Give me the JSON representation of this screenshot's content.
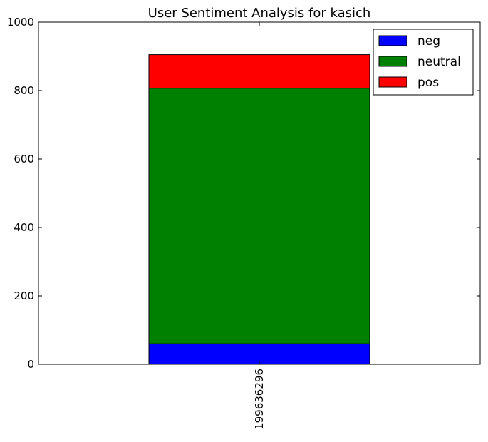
{
  "chart_data": {
    "type": "bar",
    "stacked": true,
    "title": "User Sentiment Analysis for kasich",
    "xlabel": "",
    "ylabel": "",
    "categories": [
      "199636296"
    ],
    "series": [
      {
        "name": "neg",
        "color": "#0000ff",
        "values": [
          60
        ]
      },
      {
        "name": "neutral",
        "color": "#008000",
        "values": [
          747
        ]
      },
      {
        "name": "pos",
        "color": "#ff0000",
        "values": [
          98
        ]
      }
    ],
    "ylim": [
      0,
      1000
    ],
    "yticks": [
      "0",
      "200",
      "400",
      "600",
      "800",
      "1000"
    ],
    "grid": false,
    "legend_position": "top-right"
  }
}
